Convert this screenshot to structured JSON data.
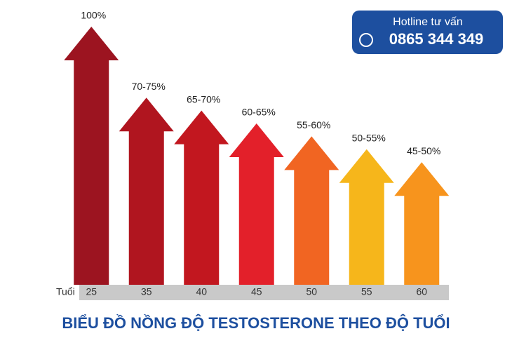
{
  "chart_data": {
    "type": "arrow-bar",
    "title": "BIỂU ĐỒ NỒNG ĐỘ TESTOSTERONE THEO ĐỘ TUỔI",
    "x_label": "Tuổi",
    "categories": [
      "25",
      "35",
      "40",
      "45",
      "50",
      "55",
      "60"
    ],
    "values": [
      100,
      72.5,
      67.5,
      62.5,
      57.5,
      52.5,
      47.5
    ],
    "value_labels": [
      "100%",
      "70-75%",
      "65-70%",
      "60-65%",
      "55-60%",
      "50-55%",
      "45-50%"
    ],
    "colors": [
      "#9c1420",
      "#b0151f",
      "#c2171f",
      "#e3202a",
      "#f16522",
      "#f6b61b",
      "#f7941d"
    ],
    "ylim": [
      0,
      100
    ],
    "annotations": {
      "hotline_label": "Hotline tư vấn",
      "hotline_number": "0865 344 349"
    }
  }
}
